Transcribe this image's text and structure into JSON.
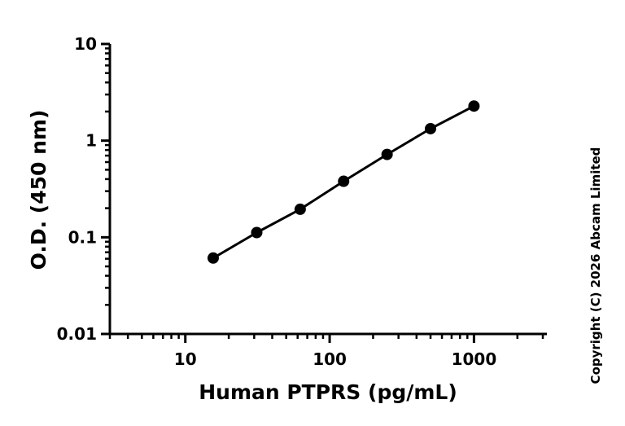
{
  "chart_data": {
    "type": "line",
    "title": "",
    "xlabel": "Human PTPRS (pg/mL)",
    "ylabel": "O.D. (450 nm)",
    "xscale": "log",
    "yscale": "log",
    "xlim": [
      3,
      3200
    ],
    "ylim": [
      0.01,
      10
    ],
    "grid": false,
    "legend": "none",
    "x_ticks": [
      {
        "value": 10,
        "label": "10"
      },
      {
        "value": 100,
        "label": "100"
      },
      {
        "value": 1000,
        "label": "1000"
      }
    ],
    "y_ticks": [
      {
        "value": 0.01,
        "label": "0.01"
      },
      {
        "value": 0.1,
        "label": "0.1"
      },
      {
        "value": 1,
        "label": "1"
      },
      {
        "value": 10,
        "label": "10"
      }
    ],
    "series": [
      {
        "x": [
          15.6,
          31.25,
          62.5,
          125,
          250,
          500,
          1000
        ],
        "y": [
          0.061,
          0.112,
          0.195,
          0.38,
          0.72,
          1.33,
          2.28
        ],
        "marker": "circle",
        "color": "#000000"
      }
    ]
  },
  "watermark": "Copyright (C) 2026 Abcam Limited"
}
